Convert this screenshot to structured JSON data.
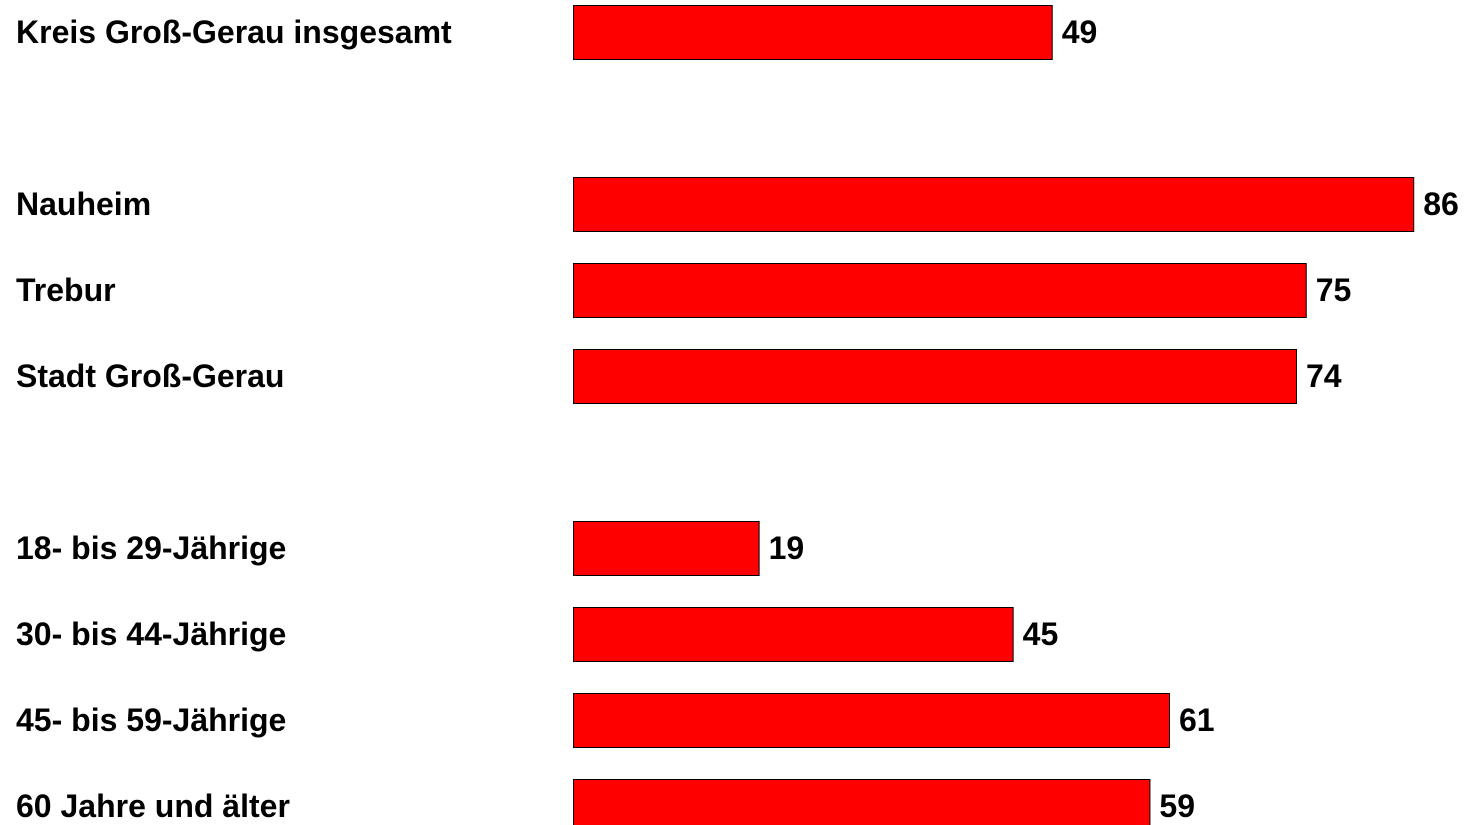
{
  "chart_data": {
    "type": "bar",
    "orientation": "horizontal",
    "title": "",
    "xlabel": "",
    "ylabel": "",
    "grid": false,
    "legend": "none",
    "bar_color": "#ff0000",
    "bar_edge_color": "#000000",
    "xlim": [
      0,
      86
    ],
    "groups": [
      {
        "categories": [
          "Kreis Groß-Gerau insgesamt"
        ],
        "values": [
          49
        ]
      },
      {
        "categories": [
          "Nauheim",
          "Trebur",
          "Stadt Groß-Gerau"
        ],
        "values": [
          86,
          75,
          74
        ]
      },
      {
        "categories": [
          "18- bis 29-Jährige",
          "30- bis 44-Jährige",
          "45- bis 59-Jährige",
          "60 Jahre und älter"
        ],
        "values": [
          19,
          45,
          61,
          59
        ]
      }
    ]
  }
}
